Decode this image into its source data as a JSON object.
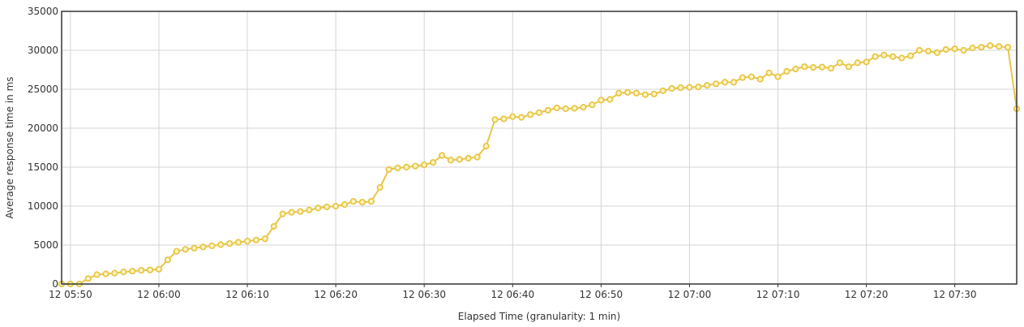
{
  "chart_data": {
    "type": "line",
    "xlabel": "Elapsed Time (granularity: 1 min)",
    "ylabel": "Average response time in ms",
    "ylim": [
      0,
      35000
    ],
    "yticks": [
      0,
      5000,
      10000,
      15000,
      20000,
      25000,
      30000,
      35000
    ],
    "xlim": [
      "12 05:49",
      "12 07:37"
    ],
    "xticks": [
      "12 05:50",
      "12 06:00",
      "12 06:10",
      "12 06:20",
      "12 06:30",
      "12 06:40",
      "12 06:50",
      "12 07:00",
      "12 07:10",
      "12 07:20",
      "12 07:30"
    ],
    "grid": true,
    "legend": "none",
    "series": [
      {
        "color": "#e8c547",
        "x": [
          "12 05:49",
          "12 05:50",
          "12 05:51",
          "12 05:52",
          "12 05:53",
          "12 05:54",
          "12 05:55",
          "12 05:56",
          "12 05:57",
          "12 05:58",
          "12 05:59",
          "12 06:00",
          "12 06:01",
          "12 06:02",
          "12 06:03",
          "12 06:04",
          "12 06:05",
          "12 06:06",
          "12 06:07",
          "12 06:08",
          "12 06:09",
          "12 06:10",
          "12 06:11",
          "12 06:12",
          "12 06:13",
          "12 06:14",
          "12 06:15",
          "12 06:16",
          "12 06:17",
          "12 06:18",
          "12 06:19",
          "12 06:20",
          "12 06:21",
          "12 06:22",
          "12 06:23",
          "12 06:24",
          "12 06:25",
          "12 06:26",
          "12 06:27",
          "12 06:28",
          "12 06:29",
          "12 06:30",
          "12 06:31",
          "12 06:32",
          "12 06:33",
          "12 06:34",
          "12 06:35",
          "12 06:36",
          "12 06:37",
          "12 06:38",
          "12 06:39",
          "12 06:40",
          "12 06:41",
          "12 06:42",
          "12 06:43",
          "12 06:44",
          "12 06:45",
          "12 06:46",
          "12 06:47",
          "12 06:48",
          "12 06:49",
          "12 06:50",
          "12 06:51",
          "12 06:52",
          "12 06:53",
          "12 06:54",
          "12 06:55",
          "12 06:56",
          "12 06:57",
          "12 06:58",
          "12 06:59",
          "12 07:00",
          "12 07:01",
          "12 07:02",
          "12 07:03",
          "12 07:04",
          "12 07:05",
          "12 07:06",
          "12 07:07",
          "12 07:08",
          "12 07:09",
          "12 07:10",
          "12 07:11",
          "12 07:12",
          "12 07:13",
          "12 07:14",
          "12 07:15",
          "12 07:16",
          "12 07:17",
          "12 07:18",
          "12 07:19",
          "12 07:20",
          "12 07:21",
          "12 07:22",
          "12 07:23",
          "12 07:24",
          "12 07:25",
          "12 07:26",
          "12 07:27",
          "12 07:28",
          "12 07:29",
          "12 07:30",
          "12 07:31",
          "12 07:32",
          "12 07:33",
          "12 07:34",
          "12 07:35",
          "12 07:36",
          "12 07:37"
        ],
        "values": [
          0,
          0,
          0,
          700,
          1200,
          1300,
          1400,
          1550,
          1650,
          1750,
          1800,
          1900,
          3100,
          4200,
          4450,
          4600,
          4750,
          4900,
          5050,
          5200,
          5350,
          5500,
          5650,
          5800,
          7400,
          9000,
          9200,
          9300,
          9500,
          9750,
          9900,
          10000,
          10200,
          10600,
          10500,
          10600,
          12400,
          14700,
          14900,
          15000,
          15150,
          15300,
          15600,
          16500,
          15900,
          16000,
          16150,
          16300,
          17700,
          21100,
          21200,
          21500,
          21400,
          21750,
          22000,
          22300,
          22600,
          22500,
          22550,
          22700,
          23000,
          23600,
          23700,
          24500,
          24600,
          24500,
          24300,
          24400,
          24800,
          25100,
          25200,
          25250,
          25300,
          25500,
          25700,
          25900,
          25900,
          26500,
          26600,
          26300,
          27100,
          26600,
          27300,
          27600,
          27900,
          27800,
          27850,
          27700,
          28400,
          27900,
          28400,
          28500,
          29200,
          29400,
          29200,
          29000,
          29300,
          30000,
          29900,
          29700,
          30100,
          30200,
          30000,
          30300,
          30400,
          30600,
          30500,
          30400,
          22500
        ]
      }
    ]
  }
}
